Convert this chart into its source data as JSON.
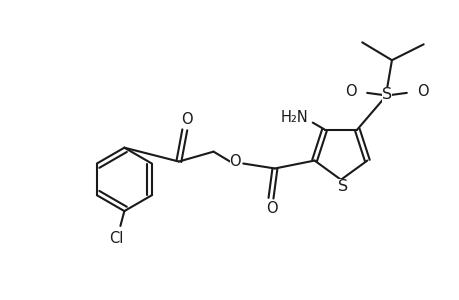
{
  "background_color": "#ffffff",
  "line_color": "#1a1a1a",
  "line_width": 1.5,
  "font_size": 10.5,
  "fig_width": 4.6,
  "fig_height": 3.0,
  "dpi": 100,
  "xlim": [
    0,
    460
  ],
  "ylim": [
    0,
    300
  ]
}
